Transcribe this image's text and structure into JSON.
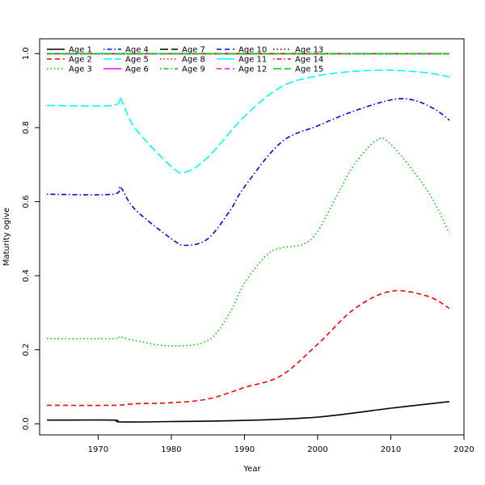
{
  "chart_data": {
    "type": "line",
    "title": "",
    "xlabel": "Year",
    "ylabel": "Maturity ogive",
    "xlim": [
      1962,
      2020
    ],
    "ylim": [
      -0.03,
      1.04
    ],
    "xticks": [
      1970,
      1980,
      1990,
      2000,
      2010,
      2020
    ],
    "yticks": [
      0.0,
      0.2,
      0.4,
      0.6,
      0.8,
      1.0
    ],
    "ytick_labels": [
      "0.0",
      "0.2",
      "0.4",
      "0.6",
      "0.8",
      "1.0"
    ],
    "grid": false,
    "legend_position": "top-left",
    "series": [
      {
        "name": "Age 1",
        "color": "#000000",
        "dash": "solid",
        "x": [
          1963,
          1972,
          1973,
          1980,
          1990,
          2000,
          2010,
          2018
        ],
        "y": [
          0.01,
          0.01,
          0.005,
          0.006,
          0.009,
          0.018,
          0.042,
          0.06
        ]
      },
      {
        "name": "Age 2",
        "color": "#ff0000",
        "dash": "dashed",
        "x": [
          1963,
          1972,
          1975,
          1980,
          1985,
          1990,
          1995,
          2000,
          2005,
          2010,
          2015,
          2018
        ],
        "y": [
          0.05,
          0.05,
          0.054,
          0.057,
          0.067,
          0.098,
          0.13,
          0.215,
          0.31,
          0.358,
          0.345,
          0.312
        ]
      },
      {
        "name": "Age 3",
        "color": "#00cd00",
        "dash": "dotted",
        "x": [
          1963,
          1972,
          1973,
          1975,
          1980,
          1985,
          1988,
          1990,
          1993,
          1995,
          1998,
          2000,
          2003,
          2005,
          2008,
          2010,
          2015,
          2018
        ],
        "y": [
          0.23,
          0.23,
          0.235,
          0.225,
          0.21,
          0.225,
          0.3,
          0.38,
          0.455,
          0.475,
          0.485,
          0.52,
          0.63,
          0.7,
          0.765,
          0.755,
          0.63,
          0.515
        ]
      },
      {
        "name": "Age 4",
        "color": "#0000ff",
        "dash": "dotdash",
        "x": [
          1963,
          1972,
          1973,
          1975,
          1980,
          1982,
          1985,
          1988,
          1990,
          1995,
          2000,
          2005,
          2010,
          2013,
          2016,
          2018
        ],
        "y": [
          0.62,
          0.62,
          0.64,
          0.58,
          0.5,
          0.482,
          0.5,
          0.575,
          0.64,
          0.76,
          0.805,
          0.845,
          0.875,
          0.875,
          0.85,
          0.82
        ]
      },
      {
        "name": "Age 5",
        "color": "#00ffff",
        "dash": "longdash",
        "x": [
          1963,
          1972,
          1973,
          1975,
          1980,
          1982,
          1985,
          1990,
          1995,
          2000,
          2005,
          2010,
          2015,
          2018
        ],
        "y": [
          0.86,
          0.86,
          0.88,
          0.8,
          0.695,
          0.68,
          0.72,
          0.83,
          0.91,
          0.94,
          0.952,
          0.955,
          0.948,
          0.937
        ]
      },
      {
        "name": "Age 6",
        "color": "#ff00ff",
        "dash": "solid",
        "x": [
          1963,
          2018
        ],
        "y": [
          1.0,
          1.0
        ]
      },
      {
        "name": "Age 7",
        "color": "#000000",
        "dash": "longdash",
        "x": [
          1963,
          2018
        ],
        "y": [
          1.0,
          1.0
        ]
      },
      {
        "name": "Age 8",
        "color": "#ff0000",
        "dash": "dotted",
        "x": [
          1963,
          2018
        ],
        "y": [
          1.0,
          1.0
        ]
      },
      {
        "name": "Age 9",
        "color": "#00cd00",
        "dash": "dotdash",
        "x": [
          1963,
          2018
        ],
        "y": [
          1.0,
          1.0
        ]
      },
      {
        "name": "Age 10",
        "color": "#0000ff",
        "dash": "dashed",
        "x": [
          1963,
          2018
        ],
        "y": [
          1.0,
          1.0
        ]
      },
      {
        "name": "Age 11",
        "color": "#00ffff",
        "dash": "solid",
        "x": [
          1963,
          2018
        ],
        "y": [
          1.0,
          1.0
        ]
      },
      {
        "name": "Age 12",
        "color": "#ff00ff",
        "dash": "dashed",
        "x": [
          1963,
          2018
        ],
        "y": [
          1.0,
          1.0
        ]
      },
      {
        "name": "Age 13",
        "color": "#000000",
        "dash": "dotted",
        "x": [
          1963,
          2018
        ],
        "y": [
          1.0,
          1.0
        ]
      },
      {
        "name": "Age 14",
        "color": "#ff0000",
        "dash": "dotdash",
        "x": [
          1963,
          2018
        ],
        "y": [
          1.0,
          1.0
        ]
      },
      {
        "name": "Age 15",
        "color": "#00cd00",
        "dash": "longdash",
        "x": [
          1963,
          2018
        ],
        "y": [
          1.0,
          1.0
        ]
      }
    ]
  }
}
